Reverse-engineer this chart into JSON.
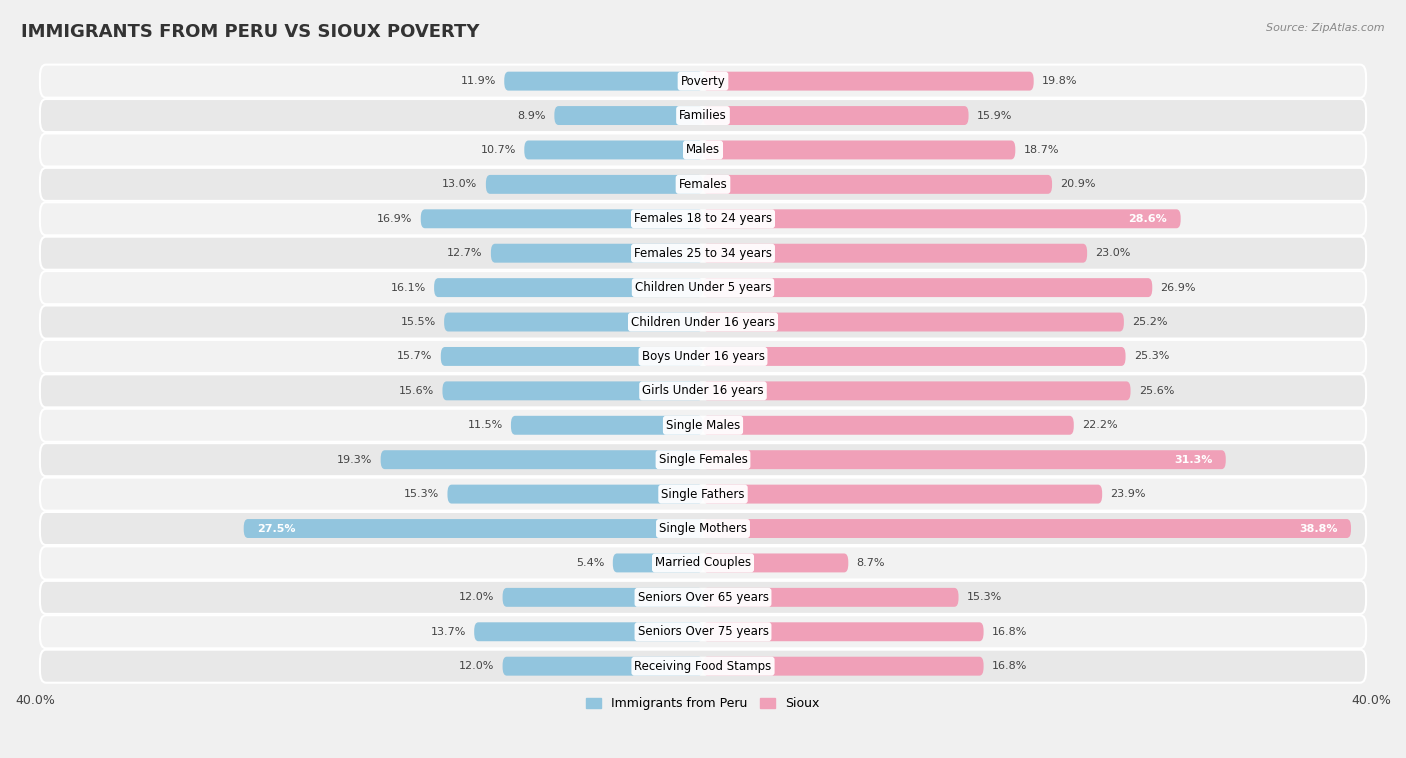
{
  "title": "IMMIGRANTS FROM PERU VS SIOUX POVERTY",
  "source": "Source: ZipAtlas.com",
  "categories": [
    "Poverty",
    "Families",
    "Males",
    "Females",
    "Females 18 to 24 years",
    "Females 25 to 34 years",
    "Children Under 5 years",
    "Children Under 16 years",
    "Boys Under 16 years",
    "Girls Under 16 years",
    "Single Males",
    "Single Females",
    "Single Fathers",
    "Single Mothers",
    "Married Couples",
    "Seniors Over 65 years",
    "Seniors Over 75 years",
    "Receiving Food Stamps"
  ],
  "peru_values": [
    11.9,
    8.9,
    10.7,
    13.0,
    16.9,
    12.7,
    16.1,
    15.5,
    15.7,
    15.6,
    11.5,
    19.3,
    15.3,
    27.5,
    5.4,
    12.0,
    13.7,
    12.0
  ],
  "sioux_values": [
    19.8,
    15.9,
    18.7,
    20.9,
    28.6,
    23.0,
    26.9,
    25.2,
    25.3,
    25.6,
    22.2,
    31.3,
    23.9,
    38.8,
    8.7,
    15.3,
    16.8,
    16.8
  ],
  "peru_color": "#92C5DE",
  "sioux_color": "#F0A0B8",
  "row_color_odd": "#e8e8e8",
  "row_color_even": "#f2f2f2",
  "background_color": "#f0f0f0",
  "xlim": 40.0,
  "bar_height": 0.55,
  "title_fontsize": 13,
  "label_fontsize": 8.5,
  "value_fontsize": 8,
  "legend_fontsize": 9
}
